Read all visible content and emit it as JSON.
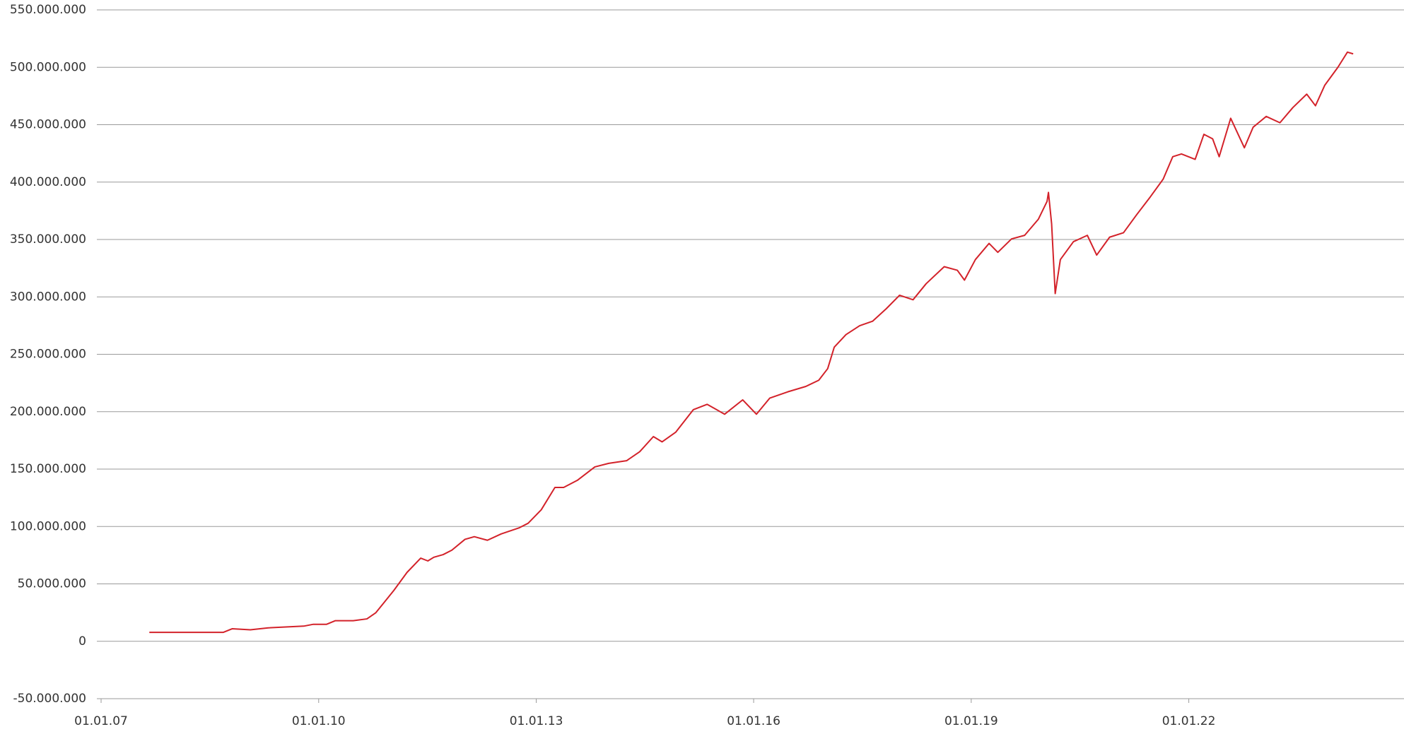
{
  "chart_data": {
    "type": "line",
    "x": [
      "2007-09-01",
      "2008-09-08",
      "2008-10-22",
      "2009-01-22",
      "2009-04-22",
      "2009-10-18",
      "2009-12-05",
      "2010-02-10",
      "2010-03-25",
      "2010-06-24",
      "2010-09-01",
      "2010-10-16",
      "2010-11-29",
      "2011-01-15",
      "2011-03-22",
      "2011-05-30",
      "2011-07-05",
      "2011-08-04",
      "2011-09-20",
      "2011-11-03",
      "2012-01-08",
      "2012-02-24",
      "2012-04-30",
      "2012-07-08",
      "2012-10-08",
      "2012-11-21",
      "2013-01-26",
      "2013-04-05",
      "2013-05-19",
      "2013-07-27",
      "2013-10-23",
      "2014-01-01",
      "2014-04-01",
      "2014-06-06",
      "2014-08-14",
      "2014-09-27",
      "2014-12-05",
      "2015-03-03",
      "2015-05-12",
      "2015-08-08",
      "2015-11-07",
      "2016-01-15",
      "2016-03-22",
      "2016-06-21",
      "2016-09-20",
      "2016-11-24",
      "2017-01-08",
      "2017-02-10",
      "2017-04-10",
      "2017-06-18",
      "2017-08-22",
      "2017-10-30",
      "2018-01-05",
      "2018-03-14",
      "2018-05-19",
      "2018-08-18",
      "2018-10-23",
      "2018-11-28",
      "2019-01-22",
      "2019-04-01",
      "2019-05-15",
      "2019-07-23",
      "2019-09-27",
      "2019-12-05",
      "2020-01-18",
      "2020-01-25",
      "2020-02-10",
      "2020-02-28",
      "2020-03-25",
      "2020-05-30",
      "2020-08-08",
      "2020-09-24",
      "2020-11-28",
      "2021-02-06",
      "2021-04-13",
      "2021-06-21",
      "2021-08-25",
      "2021-10-12",
      "2021-11-25",
      "2022-02-02",
      "2022-03-18",
      "2022-05-01",
      "2022-06-03",
      "2022-07-31",
      "2022-10-08",
      "2022-11-21",
      "2023-01-26",
      "2023-04-05",
      "2023-06-09",
      "2023-08-18",
      "2023-10-01",
      "2023-11-17",
      "2024-01-22",
      "2024-03-10",
      "2024-04-08"
    ],
    "series": [
      {
        "color": "#d3222a",
        "values": [
          7800000,
          7800000,
          10900000,
          10000000,
          11700000,
          13200000,
          14800000,
          14800000,
          17900000,
          17900000,
          19500000,
          24900000,
          34300000,
          44400000,
          60000000,
          72400000,
          70000000,
          73200000,
          75500000,
          79400000,
          88800000,
          91100000,
          88000000,
          93500000,
          98900000,
          102800000,
          114500000,
          134000000,
          134000000,
          140200000,
          151900000,
          155000000,
          157300000,
          165100000,
          178300000,
          173700000,
          182200000,
          201700000,
          206400000,
          197800000,
          210300000,
          197800000,
          211800000,
          217300000,
          222000000,
          227400000,
          237500000,
          256200000,
          267100000,
          274900000,
          278800000,
          289700000,
          301400000,
          297500000,
          311500000,
          326300000,
          323200000,
          314600000,
          332500000,
          346600000,
          338800000,
          350500000,
          353600000,
          367600000,
          383200000,
          391000000,
          363700000,
          302900000,
          332500000,
          348100000,
          353600000,
          336400000,
          352000000,
          355900000,
          371500000,
          387100000,
          402600000,
          422100000,
          424500000,
          419800000,
          441600000,
          437700000,
          422100000,
          455600000,
          429900000,
          447800000,
          457200000,
          451700000,
          464900000,
          476600000,
          466500000,
          484400000,
          500000000,
          513200000,
          511700000
        ]
      }
    ],
    "xlim": [
      "2007-01-01",
      "2024-12-20"
    ],
    "xticks": [
      {
        "value": "2007-01-01",
        "label": "01.01.07"
      },
      {
        "value": "2010-01-01",
        "label": "01.01.10"
      },
      {
        "value": "2013-01-01",
        "label": "01.01.13"
      },
      {
        "value": "2016-01-01",
        "label": "01.01.16"
      },
      {
        "value": "2019-01-01",
        "label": "01.01.19"
      },
      {
        "value": "2022-01-01",
        "label": "01.01.22"
      }
    ],
    "ylim": [
      -50000000,
      550000000
    ],
    "yticks": [
      {
        "value": -50000000,
        "label": "-50.000.000"
      },
      0,
      {
        "value": 50000000,
        "label": "50.000.000"
      },
      {
        "value": 100000000,
        "label": "100.000.000"
      },
      {
        "value": 150000000,
        "label": "150.000.000"
      },
      {
        "value": 200000000,
        "label": "200.000.000"
      },
      {
        "value": 250000000,
        "label": "250.000.000"
      },
      {
        "value": 300000000,
        "label": "300.000.000"
      },
      {
        "value": 350000000,
        "label": "350.000.000"
      },
      {
        "value": 400000000,
        "label": "400.000.000"
      },
      {
        "value": 450000000,
        "label": "450.000.000"
      },
      {
        "value": 500000000,
        "label": "500.000.000"
      },
      {
        "value": 550000000,
        "label": "550.000.000"
      }
    ],
    "grid": true
  }
}
